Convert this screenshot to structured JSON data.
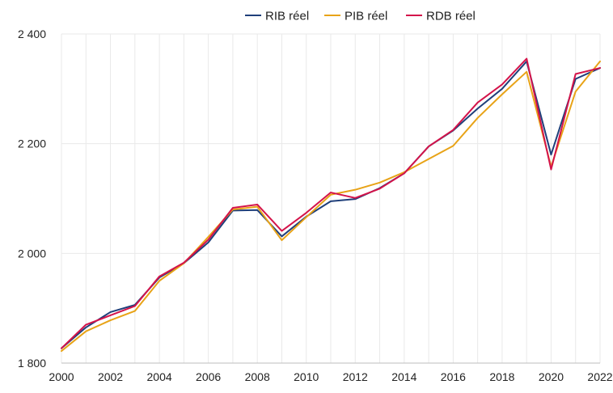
{
  "chart_data": {
    "type": "line",
    "title": "",
    "xlabel": "",
    "ylabel": "",
    "x": [
      2000,
      2001,
      2002,
      2003,
      2004,
      2005,
      2006,
      2007,
      2008,
      2009,
      2010,
      2011,
      2012,
      2013,
      2014,
      2015,
      2016,
      2017,
      2018,
      2019,
      2020,
      2021,
      2022
    ],
    "xlim": [
      2000,
      2022
    ],
    "ylim": [
      1800,
      2400
    ],
    "x_ticks": [
      2000,
      2002,
      2004,
      2006,
      2008,
      2010,
      2012,
      2014,
      2016,
      2018,
      2020,
      2022
    ],
    "x_tick_labels": [
      "2000",
      "2002",
      "2004",
      "2006",
      "2008",
      "2010",
      "2012",
      "2014",
      "2016",
      "2018",
      "2020",
      "2022"
    ],
    "y_ticks": [
      1800,
      2000,
      2200,
      2400
    ],
    "y_tick_labels": [
      "1 800",
      "2 000",
      "2 200",
      "2 400"
    ],
    "grid": true,
    "legend_position": "top",
    "series": [
      {
        "name": "RIB réel",
        "color": "#1f3f7a",
        "values": [
          1827,
          1865,
          1893,
          1906,
          1956,
          1982,
          2020,
          2078,
          2079,
          2031,
          2067,
          2095,
          2099,
          2119,
          2146,
          2195,
          2224,
          2264,
          2300,
          2350,
          2180,
          2318,
          2338
        ]
      },
      {
        "name": "PIB réel",
        "color": "#e8a317",
        "values": [
          1822,
          1858,
          1878,
          1895,
          1950,
          1982,
          2030,
          2080,
          2085,
          2024,
          2066,
          2107,
          2116,
          2129,
          2148,
          2172,
          2196,
          2247,
          2290,
          2331,
          2158,
          2295,
          2350
        ]
      },
      {
        "name": "RDB réel",
        "color": "#d4134a",
        "values": [
          1827,
          1870,
          1887,
          1904,
          1958,
          1983,
          2025,
          2083,
          2089,
          2041,
          2074,
          2111,
          2101,
          2118,
          2146,
          2195,
          2225,
          2275,
          2308,
          2355,
          2153,
          2327,
          2338
        ]
      }
    ]
  }
}
